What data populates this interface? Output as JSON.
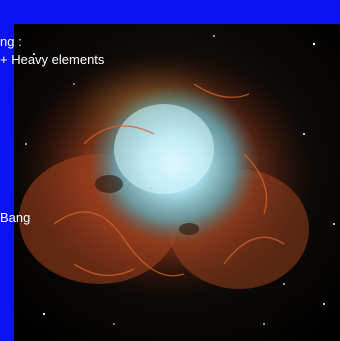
{
  "slide": {
    "captions": {
      "line1": "ng :",
      "line2": "+ Heavy elements",
      "line3": "Bang"
    },
    "background_color": "#0b14f0"
  },
  "photo": {
    "subject": "nebula-photo"
  }
}
